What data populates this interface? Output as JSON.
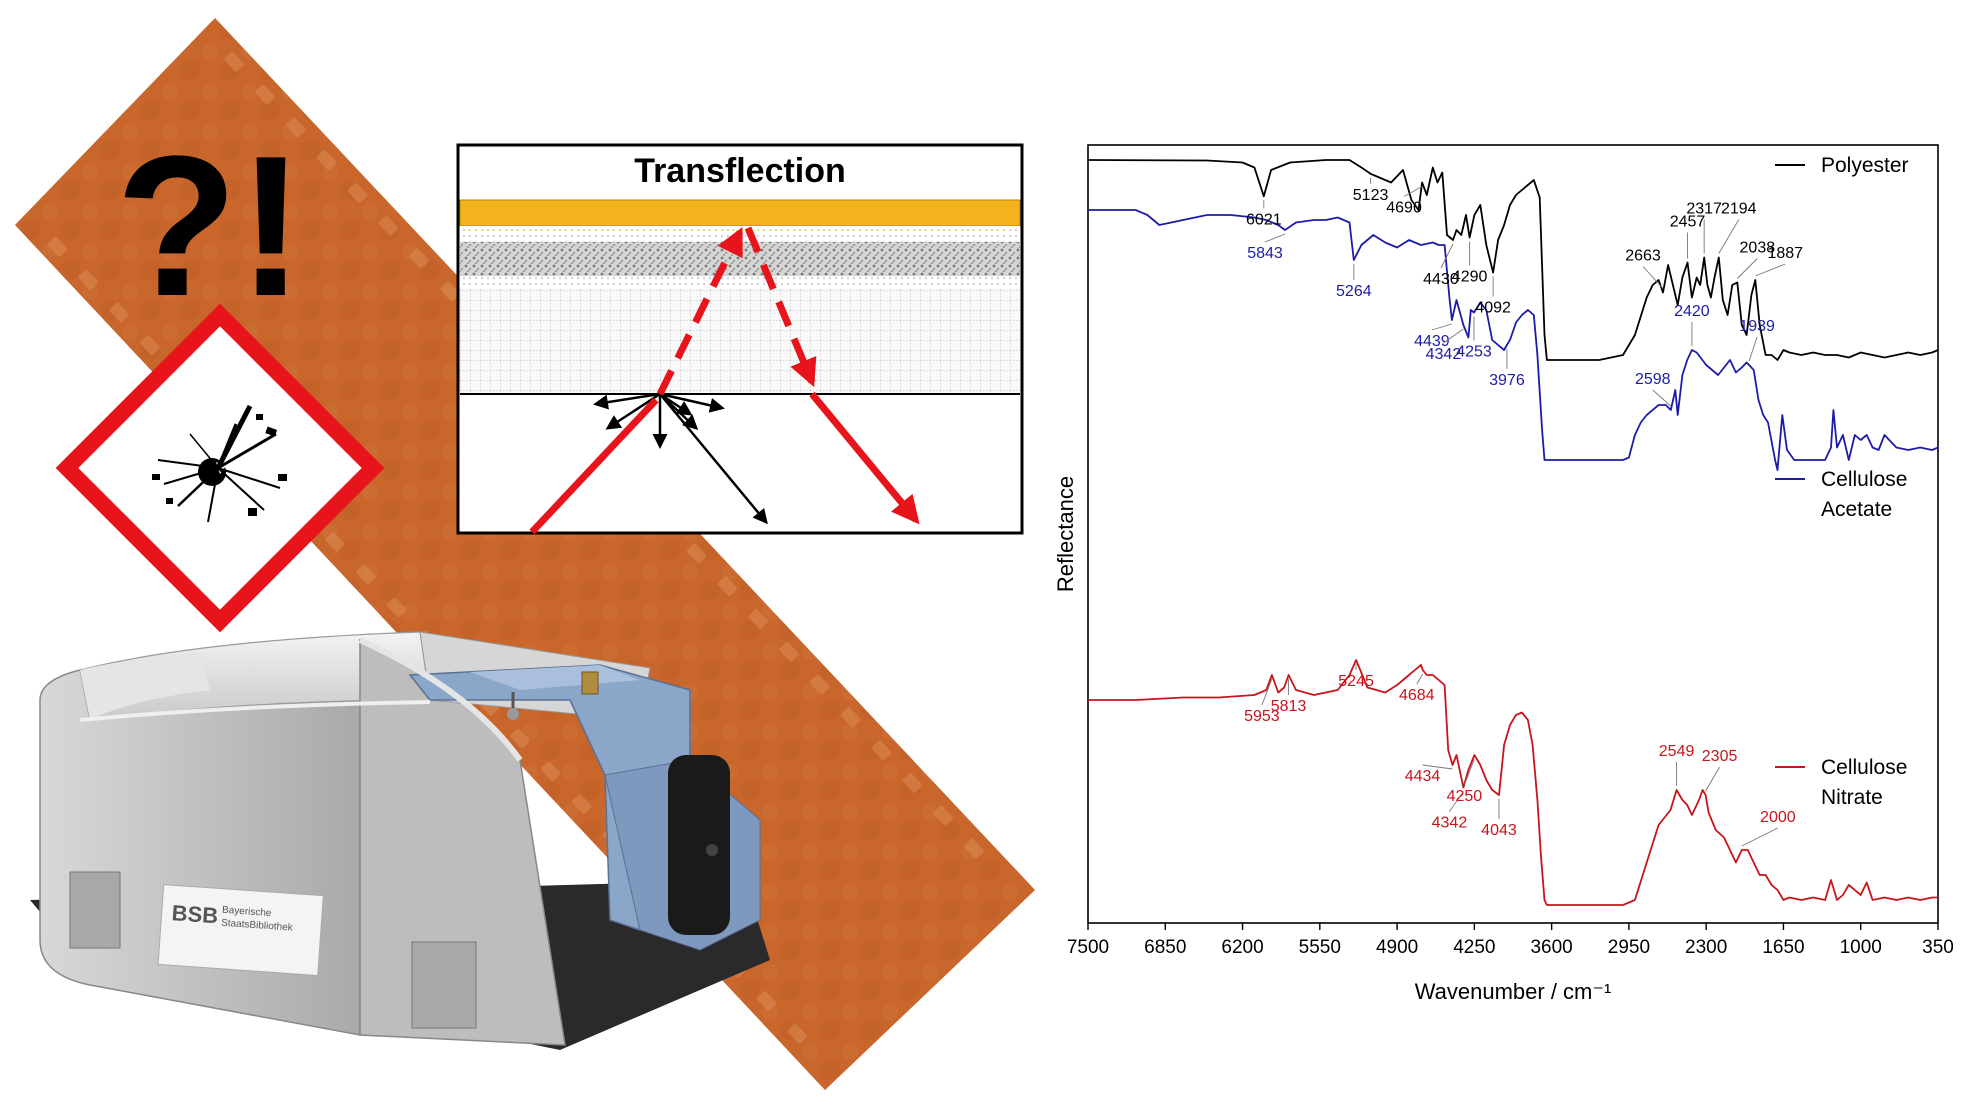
{
  "headline": "?!",
  "diagram": {
    "title": "Transflection"
  },
  "device_label": {
    "line1": "Bayerische",
    "line2": "StaatsBibliothek",
    "logo": "BSB"
  },
  "colors": {
    "film": "#c8662c",
    "ghs_red": "#e8141c",
    "beam_red": "#e8141c",
    "gold": "#f2b31c",
    "polyester": "#000000",
    "cellulose_acetate": "#1c1ca8",
    "cellulose_nitrate": "#c8141c",
    "device_blue": "#8aa6c8"
  },
  "icons": [
    "explosive-ghs-pictogram",
    "spectrometer-device",
    "film-strip"
  ],
  "chart_data": {
    "type": "line",
    "xlabel": "Wavenumber / cm⁻¹",
    "ylabel": "Reflectance",
    "xlim": [
      7500,
      350
    ],
    "x_ticks": [
      "7500",
      "6850",
      "6200",
      "5550",
      "4900",
      "4250",
      "3600",
      "2950",
      "2300",
      "1650",
      "1000",
      "350"
    ],
    "legend": "right, beside each trace",
    "series": [
      {
        "name": "Polyester",
        "color": "#000000",
        "x": [
          7500,
          6500,
          6200,
          6100,
          6021,
          5960,
          5800,
          5500,
          5300,
          5200,
          5123,
          5050,
          4950,
          4850,
          4780,
          4720,
          4690,
          4650,
          4600,
          4560,
          4520,
          4480,
          4430,
          4400,
          4360,
          4320,
          4290,
          4250,
          4200,
          4150,
          4092,
          4050,
          4000,
          3950,
          3900,
          3850,
          3800,
          3750,
          3700,
          3660,
          3640,
          3620,
          3550,
          3200,
          3000,
          2900,
          2800,
          2750,
          2700,
          2663,
          2620,
          2580,
          2540,
          2500,
          2457,
          2420,
          2380,
          2350,
          2317,
          2290,
          2260,
          2230,
          2194,
          2160,
          2120,
          2080,
          2038,
          2000,
          1960,
          1920,
          1887,
          1850,
          1800,
          1750,
          1700,
          1650,
          1600,
          1500,
          1400,
          1300,
          1200,
          1100,
          1000,
          900,
          800,
          700,
          600,
          500,
          400,
          350
        ],
        "y": [
          0.0,
          0.002,
          0.01,
          0.03,
          0.145,
          0.04,
          0.01,
          0.0,
          0.0,
          0.03,
          0.055,
          0.07,
          0.09,
          0.04,
          0.16,
          0.2,
          0.09,
          0.14,
          0.03,
          0.09,
          0.05,
          0.3,
          0.32,
          0.28,
          0.3,
          0.22,
          0.31,
          0.22,
          0.18,
          0.34,
          0.45,
          0.32,
          0.26,
          0.18,
          0.14,
          0.12,
          0.1,
          0.08,
          0.15,
          0.7,
          0.8,
          0.8,
          0.8,
          0.8,
          0.78,
          0.7,
          0.55,
          0.5,
          0.48,
          0.53,
          0.42,
          0.5,
          0.58,
          0.47,
          0.41,
          0.55,
          0.47,
          0.5,
          0.39,
          0.5,
          0.55,
          0.47,
          0.39,
          0.56,
          0.62,
          0.5,
          0.49,
          0.66,
          0.7,
          0.54,
          0.48,
          0.66,
          0.78,
          0.78,
          0.8,
          0.76,
          0.77,
          0.78,
          0.77,
          0.78,
          0.78,
          0.79,
          0.77,
          0.78,
          0.79,
          0.78,
          0.77,
          0.78,
          0.77,
          0.76
        ]
      },
      {
        "name": "Cellulose Acetate",
        "color": "#1c1ca8",
        "x": [
          7500,
          7300,
          7100,
          7000,
          6900,
          6700,
          6500,
          6300,
          6100,
          6000,
          5900,
          5843,
          5750,
          5600,
          5500,
          5400,
          5300,
          5264,
          5200,
          5100,
          5000,
          4900,
          4800,
          4700,
          4600,
          4550,
          4500,
          4460,
          4439,
          4400,
          4342,
          4300,
          4280,
          4253,
          4200,
          4150,
          4100,
          4050,
          4000,
          3976,
          3950,
          3900,
          3850,
          3800,
          3750,
          3720,
          3680,
          3660,
          3620,
          3400,
          3200,
          3000,
          2950,
          2900,
          2850,
          2800,
          2700,
          2640,
          2598,
          2560,
          2540,
          2500,
          2460,
          2420,
          2380,
          2300,
          2200,
          2100,
          2050,
          2000,
          1960,
          1939,
          1900,
          1860,
          1820,
          1780,
          1720,
          1700,
          1660,
          1620,
          1560,
          1500,
          1400,
          1300,
          1250,
          1230,
          1200,
          1150,
          1100,
          1050,
          1000,
          950,
          900,
          850,
          800,
          700,
          600,
          500,
          400,
          350
        ],
        "y": [
          0.2,
          0.2,
          0.2,
          0.22,
          0.26,
          0.24,
          0.22,
          0.22,
          0.23,
          0.24,
          0.26,
          0.28,
          0.25,
          0.24,
          0.24,
          0.23,
          0.25,
          0.4,
          0.34,
          0.3,
          0.33,
          0.35,
          0.32,
          0.34,
          0.33,
          0.34,
          0.34,
          0.55,
          0.64,
          0.56,
          0.66,
          0.71,
          0.6,
          0.61,
          0.57,
          0.6,
          0.72,
          0.74,
          0.76,
          0.74,
          0.72,
          0.65,
          0.62,
          0.6,
          0.62,
          0.78,
          1.08,
          1.2,
          1.2,
          1.2,
          1.2,
          1.2,
          1.19,
          1.1,
          1.05,
          1.02,
          0.98,
          0.98,
          1.0,
          0.92,
          1.02,
          0.86,
          0.8,
          0.76,
          0.77,
          0.82,
          0.86,
          0.8,
          0.85,
          0.83,
          0.81,
          0.82,
          0.84,
          0.96,
          1.02,
          1.05,
          1.2,
          1.24,
          1.02,
          1.16,
          1.2,
          1.2,
          1.2,
          1.2,
          1.15,
          1.0,
          1.15,
          1.1,
          1.2,
          1.1,
          1.12,
          1.1,
          1.15,
          1.16,
          1.1,
          1.15,
          1.16,
          1.15,
          1.16,
          1.15
        ]
      },
      {
        "name": "Cellulose Nitrate",
        "color": "#c8141c",
        "x": [
          7500,
          7100,
          6700,
          6400,
          6100,
          6000,
          5953,
          5900,
          5850,
          5813,
          5750,
          5600,
          5400,
          5300,
          5245,
          5150,
          5000,
          4900,
          4800,
          4750,
          4700,
          4684,
          4650,
          4600,
          4550,
          4500,
          4470,
          4434,
          4400,
          4342,
          4300,
          4250,
          4200,
          4150,
          4100,
          4043,
          4000,
          3950,
          3900,
          3850,
          3800,
          3760,
          3720,
          3690,
          3660,
          3640,
          3400,
          3200,
          3000,
          2900,
          2800,
          2700,
          2600,
          2549,
          2500,
          2460,
          2420,
          2360,
          2330,
          2305,
          2280,
          2220,
          2150,
          2100,
          2050,
          2000,
          1950,
          1900,
          1850,
          1800,
          1750,
          1700,
          1650,
          1600,
          1500,
          1400,
          1300,
          1250,
          1200,
          1150,
          1100,
          1000,
          950,
          900,
          800,
          700,
          600,
          500,
          400,
          350
        ],
        "y": [
          0.0,
          0.0,
          -0.01,
          -0.01,
          -0.02,
          -0.04,
          -0.1,
          -0.03,
          -0.05,
          -0.1,
          -0.04,
          -0.02,
          -0.04,
          -0.1,
          -0.16,
          -0.05,
          -0.03,
          -0.06,
          -0.1,
          -0.12,
          -0.14,
          -0.12,
          -0.1,
          -0.1,
          -0.08,
          -0.06,
          0.2,
          0.26,
          0.22,
          0.35,
          0.28,
          0.22,
          0.26,
          0.32,
          0.36,
          0.38,
          0.18,
          0.1,
          0.06,
          0.05,
          0.08,
          0.18,
          0.4,
          0.62,
          0.8,
          0.82,
          0.82,
          0.82,
          0.82,
          0.8,
          0.65,
          0.5,
          0.44,
          0.36,
          0.4,
          0.42,
          0.46,
          0.4,
          0.36,
          0.38,
          0.45,
          0.52,
          0.55,
          0.6,
          0.65,
          0.6,
          0.6,
          0.65,
          0.7,
          0.7,
          0.74,
          0.76,
          0.8,
          0.79,
          0.8,
          0.79,
          0.8,
          0.72,
          0.8,
          0.78,
          0.74,
          0.78,
          0.73,
          0.8,
          0.79,
          0.8,
          0.79,
          0.8,
          0.79,
          0.79
        ]
      }
    ],
    "peak_labels": [
      {
        "series": "Polyester",
        "labels": [
          "6021",
          "5123",
          "4690",
          "4430",
          "4290",
          "4092",
          "2663",
          "2457",
          "2317",
          "2194",
          "2038",
          "1887"
        ]
      },
      {
        "series": "Cellulose Acetate",
        "labels": [
          "5843",
          "5264",
          "4439",
          "4342",
          "4253",
          "3976",
          "2598",
          "2420",
          "1939"
        ]
      },
      {
        "series": "Cellulose Nitrate",
        "labels": [
          "5953",
          "5813",
          "5245",
          "4684",
          "4434",
          "4342",
          "4250",
          "4043",
          "2549",
          "2305",
          "2000"
        ]
      }
    ]
  }
}
